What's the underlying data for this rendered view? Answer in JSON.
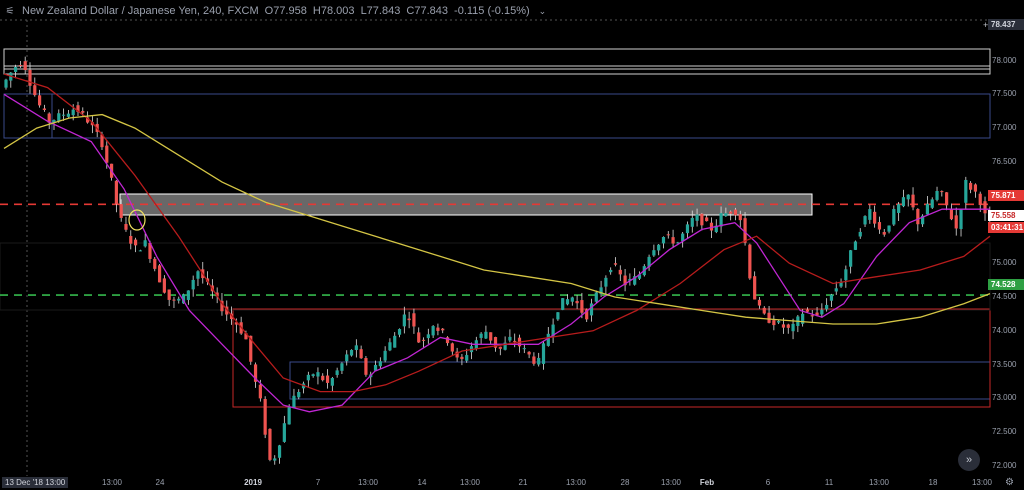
{
  "header": {
    "symbol_title": "New Zealand Dollar / Japanese Yen, 240, FXCM",
    "open": "O77.958",
    "high": "H78.003",
    "low": "L77.843",
    "close": "C77.843",
    "change": "-0.115 (-0.15%)",
    "symbol_icon": "chart-candle-icon",
    "collapse_icon": "chevron-down-icon"
  },
  "price_axis": {
    "labels": [
      "78.000",
      "77.500",
      "77.000",
      "76.500",
      "76.000",
      "75.500",
      "75.000",
      "74.500",
      "74.000",
      "73.500",
      "73.000",
      "72.500",
      "72.000"
    ],
    "top_price": "78.437",
    "top_plus": "+",
    "tags": {
      "red_level": "75.871",
      "current": "75.558",
      "countdown": "03:41:31",
      "green_level": "74.528"
    }
  },
  "time_axis": {
    "labels": [
      "13:00",
      "24",
      "2019",
      "7",
      "13:00",
      "14",
      "13:00",
      "21",
      "13:00",
      "28",
      "13:00",
      "Feb",
      "6",
      "11",
      "13:00",
      "18",
      "13:00"
    ],
    "crosshair_badge": "13 Dec '18",
    "crosshair_badge_time": "13:00"
  },
  "controls": {
    "scroll_icon": "double-chevron-right-icon",
    "scroll_glyph": "»",
    "settings_icon": "gear-icon",
    "settings_glyph": "⚙"
  },
  "colors": {
    "background": "#000000",
    "candle_up": "#26a69a",
    "candle_down": "#ef5350",
    "wick": "#e0e0e0",
    "ma_fast": "#c026d3",
    "ma_mid": "#b71c1c",
    "ma_slow": "#d4c545",
    "level_red": "#e53935",
    "level_green": "#2ea043",
    "zone_fill": "#bdbdbd",
    "rect_blue": "#3a4a8a",
    "rect_white": "#d0d0d0",
    "rect_red": "#c62828"
  },
  "chart_data": {
    "type": "candlestick",
    "symbol": "NZD/JPY",
    "timeframe": "240",
    "ylim": [
      71.85,
      78.6
    ],
    "horizontal_levels": [
      {
        "price": 75.871,
        "style": "dashed",
        "color": "red"
      },
      {
        "price": 74.528,
        "style": "dashed",
        "color": "green"
      }
    ],
    "path_points": [
      [
        0,
        77.6
      ],
      [
        6,
        77.9
      ],
      [
        10,
        78.0
      ],
      [
        14,
        77.6
      ],
      [
        18,
        77.3
      ],
      [
        22,
        77.1
      ],
      [
        28,
        77.2
      ],
      [
        34,
        77.3
      ],
      [
        40,
        77.1
      ],
      [
        46,
        76.8
      ],
      [
        50,
        76.3
      ],
      [
        54,
        75.7
      ],
      [
        58,
        75.4
      ],
      [
        62,
        75.2
      ],
      [
        66,
        75.3
      ],
      [
        72,
        74.8
      ],
      [
        78,
        74.4
      ],
      [
        84,
        74.5
      ],
      [
        90,
        74.9
      ],
      [
        96,
        74.6
      ],
      [
        102,
        74.3
      ],
      [
        108,
        74.1
      ],
      [
        112,
        73.9
      ],
      [
        116,
        73.3
      ],
      [
        120,
        72.8
      ],
      [
        122,
        72.2
      ],
      [
        124,
        72.0
      ],
      [
        128,
        72.4
      ],
      [
        132,
        72.9
      ],
      [
        138,
        73.2
      ],
      [
        144,
        73.4
      ],
      [
        150,
        73.2
      ],
      [
        156,
        73.5
      ],
      [
        162,
        73.8
      ],
      [
        168,
        73.3
      ],
      [
        174,
        73.6
      ],
      [
        180,
        73.9
      ],
      [
        186,
        74.3
      ],
      [
        192,
        73.8
      ],
      [
        198,
        74.1
      ],
      [
        204,
        73.9
      ],
      [
        210,
        73.5
      ],
      [
        216,
        73.8
      ],
      [
        222,
        74.0
      ],
      [
        228,
        73.7
      ],
      [
        234,
        73.9
      ],
      [
        240,
        73.7
      ],
      [
        246,
        73.5
      ],
      [
        250,
        73.9
      ],
      [
        256,
        74.4
      ],
      [
        262,
        74.5
      ],
      [
        268,
        74.2
      ],
      [
        274,
        74.6
      ],
      [
        280,
        75.0
      ],
      [
        286,
        74.7
      ],
      [
        292,
        74.8
      ],
      [
        298,
        75.2
      ],
      [
        304,
        75.4
      ],
      [
        310,
        75.3
      ],
      [
        314,
        75.5
      ],
      [
        318,
        75.7
      ],
      [
        322,
        75.6
      ],
      [
        326,
        75.5
      ],
      [
        330,
        75.7
      ],
      [
        336,
        75.8
      ],
      [
        340,
        75.6
      ],
      [
        342,
        75.0
      ],
      [
        346,
        74.4
      ],
      [
        350,
        74.2
      ],
      [
        356,
        74.1
      ],
      [
        362,
        74.0
      ],
      [
        368,
        74.3
      ],
      [
        374,
        74.2
      ],
      [
        380,
        74.5
      ],
      [
        386,
        74.8
      ],
      [
        392,
        75.4
      ],
      [
        398,
        75.8
      ],
      [
        404,
        75.4
      ],
      [
        410,
        75.8
      ],
      [
        416,
        76.0
      ],
      [
        420,
        75.6
      ],
      [
        426,
        75.9
      ],
      [
        430,
        76.1
      ],
      [
        434,
        75.8
      ],
      [
        438,
        75.5
      ],
      [
        442,
        76.2
      ],
      [
        448,
        76.0
      ],
      [
        452,
        75.6
      ]
    ],
    "moving_averages": [
      {
        "color": "magenta",
        "values": [
          [
            0,
            77.5
          ],
          [
            20,
            77.1
          ],
          [
            40,
            76.8
          ],
          [
            55,
            76.1
          ],
          [
            70,
            75.1
          ],
          [
            85,
            74.3
          ],
          [
            100,
            73.8
          ],
          [
            115,
            73.3
          ],
          [
            128,
            72.9
          ],
          [
            140,
            72.8
          ],
          [
            155,
            72.9
          ],
          [
            170,
            73.4
          ],
          [
            185,
            73.6
          ],
          [
            200,
            73.9
          ],
          [
            215,
            73.8
          ],
          [
            230,
            73.8
          ],
          [
            245,
            73.8
          ],
          [
            260,
            74.1
          ],
          [
            275,
            74.5
          ],
          [
            290,
            74.8
          ],
          [
            305,
            75.2
          ],
          [
            320,
            75.5
          ],
          [
            335,
            75.6
          ],
          [
            345,
            75.3
          ],
          [
            355,
            74.8
          ],
          [
            365,
            74.3
          ],
          [
            375,
            74.2
          ],
          [
            385,
            74.4
          ],
          [
            400,
            75.1
          ],
          [
            415,
            75.6
          ],
          [
            430,
            75.8
          ],
          [
            445,
            75.8
          ],
          [
            452,
            75.8
          ]
        ]
      },
      {
        "color": "dark-red",
        "values": [
          [
            0,
            77.8
          ],
          [
            20,
            77.6
          ],
          [
            40,
            77.1
          ],
          [
            60,
            76.3
          ],
          [
            80,
            75.4
          ],
          [
            100,
            74.4
          ],
          [
            115,
            73.8
          ],
          [
            128,
            73.3
          ],
          [
            145,
            73.1
          ],
          [
            160,
            73.1
          ],
          [
            175,
            73.2
          ],
          [
            190,
            73.4
          ],
          [
            210,
            73.7
          ],
          [
            230,
            73.8
          ],
          [
            250,
            73.9
          ],
          [
            270,
            74.0
          ],
          [
            290,
            74.3
          ],
          [
            310,
            74.7
          ],
          [
            330,
            75.2
          ],
          [
            345,
            75.4
          ],
          [
            360,
            75.0
          ],
          [
            380,
            74.7
          ],
          [
            400,
            74.8
          ],
          [
            420,
            74.9
          ],
          [
            440,
            75.1
          ],
          [
            452,
            75.4
          ]
        ]
      },
      {
        "color": "yellow",
        "values": [
          [
            0,
            76.7
          ],
          [
            15,
            77.0
          ],
          [
            30,
            77.15
          ],
          [
            45,
            77.2
          ],
          [
            60,
            77.0
          ],
          [
            80,
            76.6
          ],
          [
            100,
            76.2
          ],
          [
            120,
            75.9
          ],
          [
            140,
            75.7
          ],
          [
            160,
            75.5
          ],
          [
            180,
            75.3
          ],
          [
            200,
            75.1
          ],
          [
            220,
            74.9
          ],
          [
            240,
            74.8
          ],
          [
            260,
            74.7
          ],
          [
            280,
            74.5
          ],
          [
            300,
            74.4
          ],
          [
            320,
            74.3
          ],
          [
            340,
            74.2
          ],
          [
            360,
            74.15
          ],
          [
            380,
            74.1
          ],
          [
            400,
            74.1
          ],
          [
            420,
            74.2
          ],
          [
            440,
            74.4
          ],
          [
            452,
            74.55
          ]
        ]
      }
    ]
  }
}
